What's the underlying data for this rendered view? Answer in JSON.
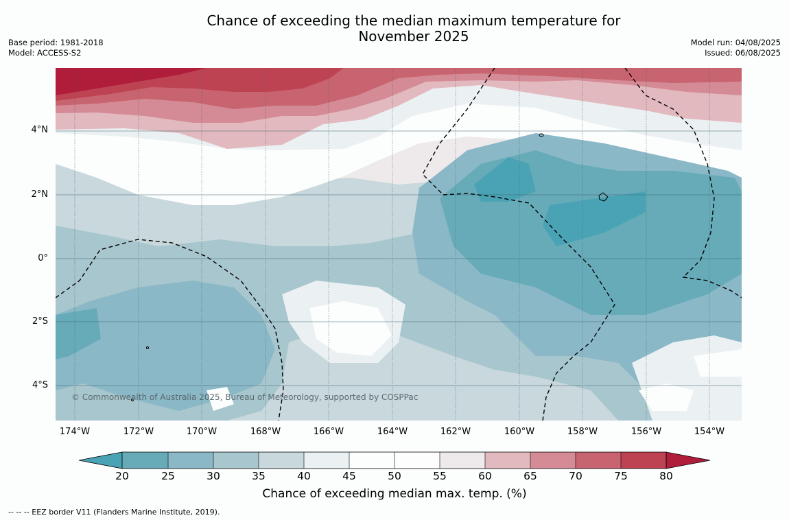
{
  "title": {
    "line1": "Chance of exceeding the median maximum temperature for",
    "line2": "November 2025"
  },
  "meta": {
    "base_period": "Base period: 1981-2018",
    "model": "Model: ACCESS-S2",
    "model_run": "Model run: 04/08/2025",
    "issued": "Issued: 06/08/2025"
  },
  "map": {
    "latitude_labels": [
      "4°N",
      "2°N",
      "0°",
      "2°S",
      "4°S"
    ],
    "longitude_labels": [
      "174°W",
      "172°W",
      "170°W",
      "168°W",
      "166°W",
      "164°W",
      "162°W",
      "160°W",
      "158°W",
      "156°W",
      "154°W"
    ],
    "copyright": "© Commonwealth of Australia 2025, Bureau of Meteorology, supported by COSPPac",
    "border_style": "dashed black line"
  },
  "colorbar": {
    "ticks": [
      "20",
      "25",
      "30",
      "35",
      "40",
      "45",
      "50",
      "55",
      "60",
      "65",
      "70",
      "75",
      "80"
    ],
    "colors": {
      "below_20": "#4aa3b4",
      "20-25": "#67abb9",
      "25-30": "#8bb8c6",
      "30-35": "#a8c6cd",
      "35-40": "#c8d8dc",
      "40-45": "#ebf0f2",
      "45-50": "#fcfdfd",
      "50-55": "#fdfdfd",
      "55-60": "#eeeaeb",
      "60-65": "#e2b9bf",
      "65-70": "#d48b95",
      "70-75": "#c8646f",
      "75-80": "#bd4352",
      "above_80": "#b01d3a"
    },
    "label": "Chance of exceeding median max. temp. (%)"
  },
  "footnote": "--  --  -- EEZ border V11 (Flanders Marine Institute, 2019)."
}
